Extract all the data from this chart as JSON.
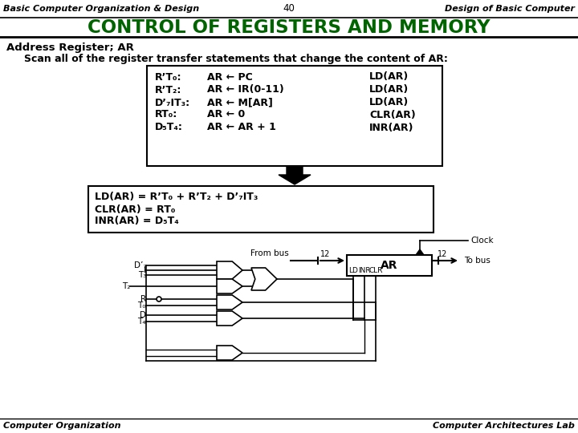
{
  "title": "CONTROL OF REGISTERS AND MEMORY",
  "header_left": "Basic Computer Organization & Design",
  "header_center": "40",
  "header_right": "Design of Basic Computer",
  "footer_left": "Computer Organization",
  "footer_right": "Computer Architectures Lab",
  "title_color": "#006400",
  "bg_color": "#ffffff"
}
